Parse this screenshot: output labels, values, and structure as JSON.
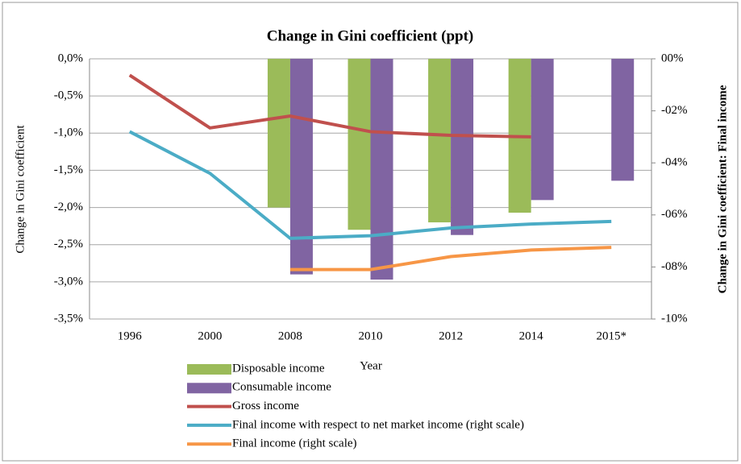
{
  "chart_data": {
    "type": "bar-line",
    "title": "Change in Gini coefficient (ppt)",
    "x_label": "Year",
    "y_label": "Change in Gini coefficient",
    "y2_label": "Change in Gini coefficient: Final income",
    "categories": [
      "1996",
      "2000",
      "2008",
      "2010",
      "2012",
      "2014",
      "2015*"
    ],
    "ylim": [
      -3.5,
      0
    ],
    "yticks": [
      {
        "value": 0,
        "label": "0,0%"
      },
      {
        "value": -0.5,
        "label": "-0,5%"
      },
      {
        "value": -1,
        "label": "-1,0%"
      },
      {
        "value": -1.5,
        "label": "-1,5%"
      },
      {
        "value": -2,
        "label": "-2,0%"
      },
      {
        "value": -2.5,
        "label": "-2,5%"
      },
      {
        "value": -3,
        "label": "-3,0%"
      },
      {
        "value": -3.5,
        "label": "-3,5%"
      }
    ],
    "y2lim": [
      -10,
      0
    ],
    "y2ticks": [
      {
        "value": 0,
        "label": "00%"
      },
      {
        "value": -2,
        "label": "-02%"
      },
      {
        "value": -4,
        "label": "-04%"
      },
      {
        "value": -6,
        "label": "-06%"
      },
      {
        "value": -8,
        "label": "-08%"
      },
      {
        "value": -10,
        "label": "-10%"
      }
    ],
    "grid": true,
    "legend": "bottom-left",
    "series": [
      {
        "name": "Disposable income",
        "type": "bar",
        "color": "#9bbb59",
        "values": [
          null,
          null,
          -2.0,
          -2.3,
          -2.2,
          -2.07,
          null
        ]
      },
      {
        "name": "Consumable income",
        "type": "bar",
        "color": "#8064a2",
        "values": [
          null,
          null,
          -2.9,
          -2.97,
          -2.37,
          -1.9,
          -1.64
        ]
      },
      {
        "name": "Gross income",
        "type": "line",
        "color": "#c0504d",
        "values": [
          -0.22,
          -0.93,
          -0.77,
          -0.98,
          -1.03,
          -1.05,
          null
        ]
      },
      {
        "name": "Final income with respect to net market income (right scale)",
        "type": "line",
        "axis": "y2",
        "color": "#4bacc6",
        "values": [
          -2.8,
          -4.4,
          -6.9,
          -6.8,
          -6.5,
          -6.35,
          -6.25
        ]
      },
      {
        "name": "Final income (right scale)",
        "type": "line",
        "axis": "y2",
        "color": "#f79646",
        "values": [
          null,
          null,
          -8.1,
          -8.1,
          -7.6,
          -7.35,
          -7.25
        ]
      }
    ]
  }
}
